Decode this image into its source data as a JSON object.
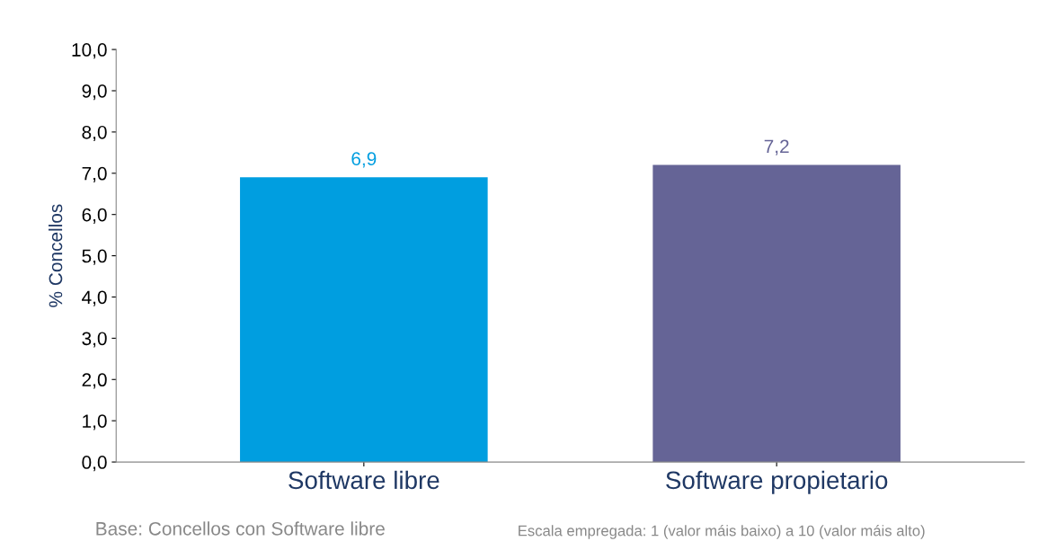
{
  "chart_data": {
    "type": "bar",
    "categories": [
      "Software libre",
      "Software propietario"
    ],
    "values": [
      6.9,
      7.2
    ],
    "colors": [
      "#009ee0",
      "#656496"
    ],
    "value_labels": [
      "6,9",
      "7,2"
    ],
    "ylabel": "% Concellos",
    "ylim": [
      0,
      10
    ],
    "yticks": [
      {
        "value": 0,
        "label": "0,0"
      },
      {
        "value": 1,
        "label": "1,0"
      },
      {
        "value": 2,
        "label": "2,0"
      },
      {
        "value": 3,
        "label": "3,0"
      },
      {
        "value": 4,
        "label": "4,0"
      },
      {
        "value": 5,
        "label": "5,0"
      },
      {
        "value": 6,
        "label": "6,0"
      },
      {
        "value": 7,
        "label": "7,0"
      },
      {
        "value": 8,
        "label": "8,0"
      },
      {
        "value": 9,
        "label": "9,0"
      },
      {
        "value": 10,
        "label": "10,0"
      }
    ],
    "annotations": [
      "Base: Concellos con Software libre",
      "Escala empregada: 1 (valor máis baixo) a 10 (valor máis alto)"
    ],
    "grid": false,
    "legend": false
  }
}
